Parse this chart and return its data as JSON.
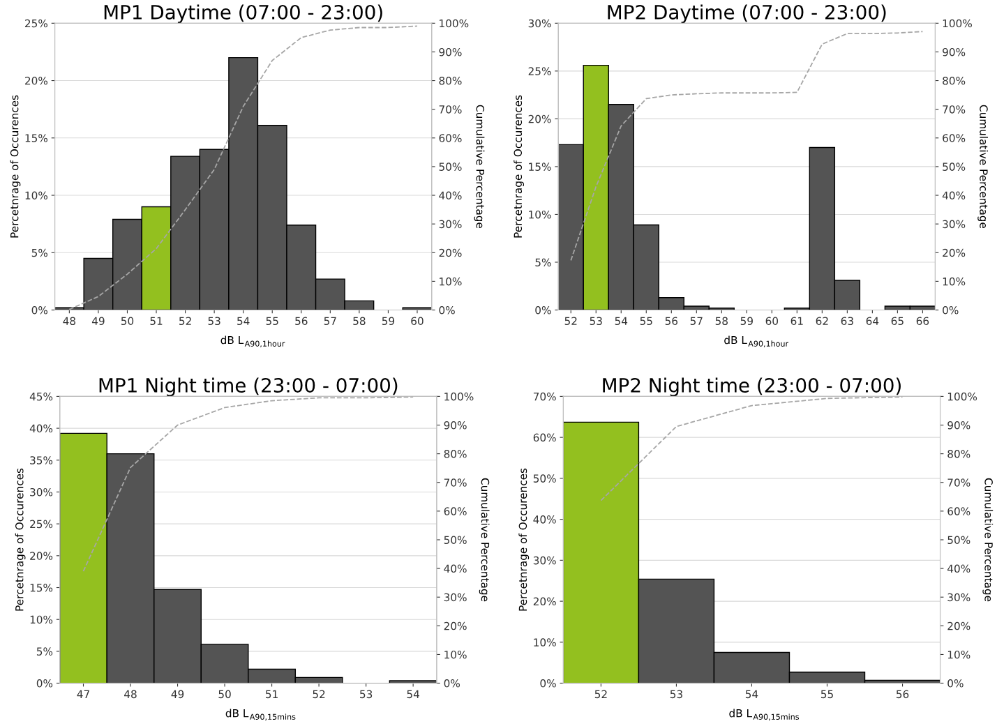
{
  "chart_data": [
    {
      "type": "bar",
      "title": "MP1 Daytime (07:00 - 23:00)",
      "xlabel": "dB L$_{A90,1hour}$",
      "ylabel": "Percetnrage of Occurences",
      "y2label": "Cumulative Percentage",
      "categories": [
        "48",
        "49",
        "50",
        "51",
        "52",
        "53",
        "54",
        "55",
        "56",
        "57",
        "58",
        "59",
        "60"
      ],
      "series": [
        {
          "colors": [
            "#545454",
            "#545454",
            "#545454",
            "#93c01f",
            "#545454",
            "#545454",
            "#545454",
            "#545454",
            "#545454",
            "#545454",
            "#545454",
            "#545454",
            "#545454"
          ],
          "values": [
            0.2,
            4.5,
            7.9,
            9.0,
            13.4,
            14.0,
            22.0,
            16.1,
            7.4,
            2.7,
            0.8,
            null,
            0.2
          ]
        },
        {
          "type": "line",
          "axis": "y2",
          "color": "#a6a6a6",
          "line_style": "dashed",
          "values": [
            0.2,
            4.7,
            12.5,
            21.4,
            35,
            49,
            71,
            87,
            95,
            97.6,
            98.5,
            98.5,
            99
          ]
        }
      ],
      "ylim": [
        0,
        25
      ],
      "yticks": [
        {
          "value": 0,
          "label": "0%"
        },
        {
          "value": 5,
          "label": "5%"
        },
        {
          "value": 10,
          "label": "10%"
        },
        {
          "value": 15,
          "label": "15%"
        },
        {
          "value": 20,
          "label": "20%"
        },
        {
          "value": 25,
          "label": "25%"
        }
      ],
      "y2lim": [
        0,
        100
      ],
      "y2ticks": [
        {
          "value": 0,
          "label": "0%"
        },
        {
          "value": 10,
          "label": "10%"
        },
        {
          "value": 20,
          "label": "20%"
        },
        {
          "value": 30,
          "label": "30%"
        },
        {
          "value": 40,
          "label": "40%"
        },
        {
          "value": 50,
          "label": "50%"
        },
        {
          "value": 60,
          "label": "60%"
        },
        {
          "value": 70,
          "label": "70%"
        },
        {
          "value": 80,
          "label": "80%"
        },
        {
          "value": 90,
          "label": "90%"
        },
        {
          "value": 100,
          "label": "100%"
        }
      ],
      "grid": "y",
      "marker": "none"
    },
    {
      "type": "bar",
      "title": "MP2 Daytime (07:00 - 23:00)",
      "xlabel": "dB L$_{A90,1hour}$",
      "ylabel": "Percetnrage of Occurences",
      "y2label": "Cumulative Percentage",
      "categories": [
        "52",
        "53",
        "54",
        "55",
        "56",
        "57",
        "58",
        "59",
        "60",
        "61",
        "62",
        "63",
        "64",
        "65",
        "66"
      ],
      "series": [
        {
          "colors": [
            "#545454",
            "#93c01f",
            "#545454",
            "#545454",
            "#545454",
            "#545454",
            "#545454",
            "#545454",
            "#545454",
            "#545454",
            "#545454",
            "#545454",
            "#545454",
            "#545454",
            "#545454"
          ],
          "values": [
            17.3,
            25.6,
            21.5,
            8.9,
            1.3,
            0.4,
            0.2,
            null,
            null,
            0.2,
            17.0,
            3.1,
            null,
            0.4,
            0.4
          ]
        },
        {
          "type": "line",
          "axis": "y2",
          "color": "#a6a6a6",
          "line_style": "dashed",
          "values": [
            17.3,
            43,
            64.2,
            73.7,
            75,
            75.4,
            75.7,
            75.7,
            75.7,
            75.9,
            92.7,
            96.4,
            96.4,
            96.6,
            97.1
          ]
        }
      ],
      "ylim": [
        0,
        30
      ],
      "yticks": [
        {
          "value": 0,
          "label": "0%"
        },
        {
          "value": 5,
          "label": "5%"
        },
        {
          "value": 10,
          "label": "10%"
        },
        {
          "value": 15,
          "label": "15%"
        },
        {
          "value": 20,
          "label": "20%"
        },
        {
          "value": 25,
          "label": "25%"
        },
        {
          "value": 30,
          "label": "30%"
        }
      ],
      "y2lim": [
        0,
        100
      ],
      "y2ticks": [
        {
          "value": 0,
          "label": "0%"
        },
        {
          "value": 10,
          "label": "10%"
        },
        {
          "value": 20,
          "label": "20%"
        },
        {
          "value": 30,
          "label": "30%"
        },
        {
          "value": 40,
          "label": "40%"
        },
        {
          "value": 50,
          "label": "50%"
        },
        {
          "value": 60,
          "label": "60%"
        },
        {
          "value": 70,
          "label": "70%"
        },
        {
          "value": 80,
          "label": "80%"
        },
        {
          "value": 90,
          "label": "90%"
        },
        {
          "value": 100,
          "label": "100%"
        }
      ],
      "grid": "y",
      "marker": "none"
    },
    {
      "type": "bar",
      "title": "MP1 Night time (23:00 - 07:00)",
      "xlabel": "dB L$_{A90,15mins}$",
      "ylabel": "Percetnrage of Occurences",
      "y2label": "Cumulative Percentage",
      "categories": [
        "47",
        "48",
        "49",
        "50",
        "51",
        "52",
        "53",
        "54"
      ],
      "series": [
        {
          "colors": [
            "#93c01f",
            "#545454",
            "#545454",
            "#545454",
            "#545454",
            "#545454",
            "#545454",
            "#545454"
          ],
          "values": [
            39.2,
            36.0,
            14.7,
            6.1,
            2.2,
            0.9,
            null,
            0.4
          ]
        },
        {
          "type": "line",
          "axis": "y2",
          "color": "#a6a6a6",
          "line_style": "dashed",
          "values": [
            39,
            75.2,
            90,
            96.1,
            98.5,
            99.5,
            99.5,
            99.8
          ]
        }
      ],
      "ylim": [
        0,
        45
      ],
      "yticks": [
        {
          "value": 0,
          "label": "0%"
        },
        {
          "value": 5,
          "label": "5%"
        },
        {
          "value": 10,
          "label": "10%"
        },
        {
          "value": 15,
          "label": "15%"
        },
        {
          "value": 20,
          "label": "20%"
        },
        {
          "value": 25,
          "label": "25%"
        },
        {
          "value": 30,
          "label": "30%"
        },
        {
          "value": 35,
          "label": "35%"
        },
        {
          "value": 40,
          "label": "40%"
        },
        {
          "value": 45,
          "label": "45%"
        }
      ],
      "y2lim": [
        0,
        100
      ],
      "y2ticks": [
        {
          "value": 0,
          "label": "0%"
        },
        {
          "value": 10,
          "label": "10%"
        },
        {
          "value": 20,
          "label": "20%"
        },
        {
          "value": 30,
          "label": "30%"
        },
        {
          "value": 40,
          "label": "40%"
        },
        {
          "value": 50,
          "label": "50%"
        },
        {
          "value": 60,
          "label": "60%"
        },
        {
          "value": 70,
          "label": "70%"
        },
        {
          "value": 80,
          "label": "80%"
        },
        {
          "value": 90,
          "label": "90%"
        },
        {
          "value": 100,
          "label": "100%"
        }
      ],
      "grid": "y",
      "marker": "none"
    },
    {
      "type": "bar",
      "title": "MP2 Night time (23:00 - 07:00)",
      "xlabel": "dB L$_{A90,15mins}$",
      "ylabel": "Percetnrage of Occurences",
      "y2label": "Cumulative Percentage",
      "categories": [
        "52",
        "53",
        "54",
        "55",
        "56"
      ],
      "series": [
        {
          "colors": [
            "#93c01f",
            "#545454",
            "#545454",
            "#545454",
            "#545454"
          ],
          "values": [
            63.7,
            25.4,
            7.5,
            2.7,
            0.7
          ]
        },
        {
          "type": "line",
          "axis": "y2",
          "color": "#a6a6a6",
          "line_style": "dashed",
          "values": [
            63.7,
            89.5,
            96.8,
            99.3,
            99.8
          ]
        }
      ],
      "ylim": [
        0,
        70
      ],
      "yticks": [
        {
          "value": 0,
          "label": "0%"
        },
        {
          "value": 10,
          "label": "10%"
        },
        {
          "value": 20,
          "label": "20%"
        },
        {
          "value": 30,
          "label": "30%"
        },
        {
          "value": 40,
          "label": "40%"
        },
        {
          "value": 50,
          "label": "50%"
        },
        {
          "value": 60,
          "label": "60%"
        },
        {
          "value": 70,
          "label": "70%"
        }
      ],
      "y2lim": [
        0,
        100
      ],
      "y2ticks": [
        {
          "value": 0,
          "label": "0%"
        },
        {
          "value": 10,
          "label": "10%"
        },
        {
          "value": 20,
          "label": "20%"
        },
        {
          "value": 30,
          "label": "30%"
        },
        {
          "value": 40,
          "label": "40%"
        },
        {
          "value": 50,
          "label": "50%"
        },
        {
          "value": 60,
          "label": "60%"
        },
        {
          "value": 70,
          "label": "70%"
        },
        {
          "value": 80,
          "label": "80%"
        },
        {
          "value": 90,
          "label": "90%"
        },
        {
          "value": 100,
          "label": "100%"
        }
      ],
      "grid": "y",
      "marker": "none"
    }
  ]
}
